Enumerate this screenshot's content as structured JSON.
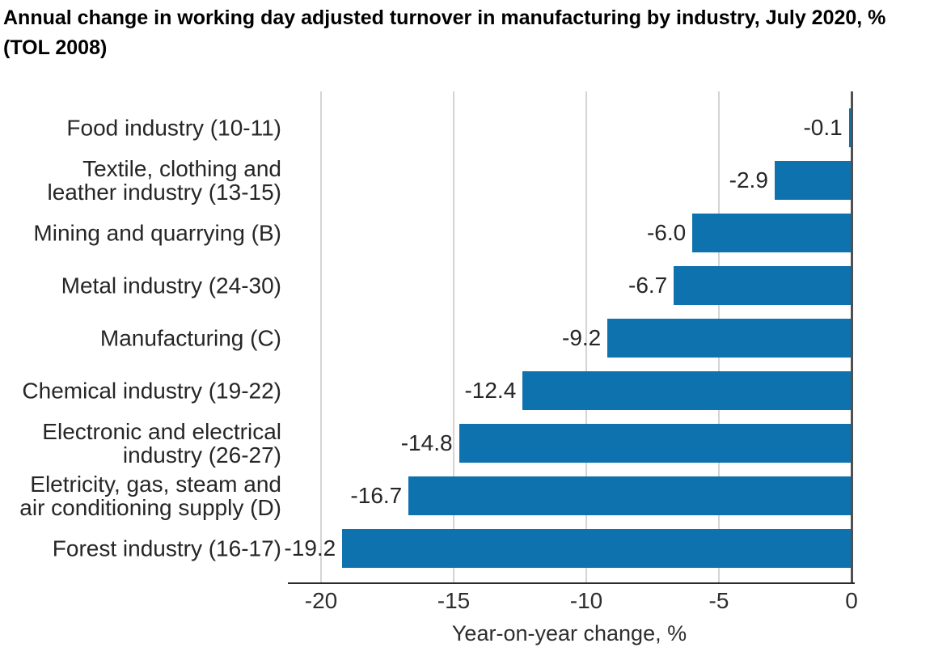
{
  "title_lines": [
    "Annual change in working day adjusted turnover in manufacturing by industry, July 2020, %",
    "(TOL 2008)"
  ],
  "chart_data": {
    "type": "bar",
    "orientation": "horizontal",
    "title": "Annual change in working day adjusted turnover in manufacturing by industry, July 2020, % (TOL 2008)",
    "xlabel": "Year-on-year change, %",
    "categories": [
      "Food industry (10-11)",
      "Textile, clothing and leather industry (13-15)",
      "Mining and quarrying (B)",
      "Metal industry (24-30)",
      "Manufacturing (C)",
      "Chemical industry (19-22)",
      "Electronic and electrical industry (26-27)",
      "Eletricity, gas, steam and air conditioning supply (D)",
      "Forest industry (16-17)"
    ],
    "category_label_lines": [
      [
        "Food industry (10-11)"
      ],
      [
        "Textile, clothing and",
        "leather industry (13-15)"
      ],
      [
        "Mining and quarrying (B)"
      ],
      [
        "Metal industry (24-30)"
      ],
      [
        "Manufacturing (C)"
      ],
      [
        "Chemical industry (19-22)"
      ],
      [
        "Electronic and electrical",
        "industry (26-27)"
      ],
      [
        "Eletricity, gas, steam and",
        "air conditioning supply (D)"
      ],
      [
        "Forest industry (16-17)"
      ]
    ],
    "values": [
      -0.1,
      -2.9,
      -6.0,
      -6.7,
      -9.2,
      -12.4,
      -14.8,
      -16.7,
      -19.2
    ],
    "value_labels": [
      "-0.1",
      "-2.9",
      "-6.0",
      "-6.7",
      "-9.2",
      "-12.4",
      "-14.8",
      "-16.7",
      "-19.2"
    ],
    "xticks": [
      -20,
      -15,
      -10,
      -5,
      0
    ],
    "xtick_labels": [
      "-20",
      "-15",
      "-10",
      "-5",
      "0"
    ],
    "xlim": [
      -21.25,
      0
    ],
    "grid": "vertical",
    "legend": "none",
    "bar_color": "#0d72ad",
    "zero_line_color": "#505050",
    "axis_line_color": "#2b2b2b",
    "grid_color": "#d4d4d4",
    "text_color": "#262626"
  }
}
